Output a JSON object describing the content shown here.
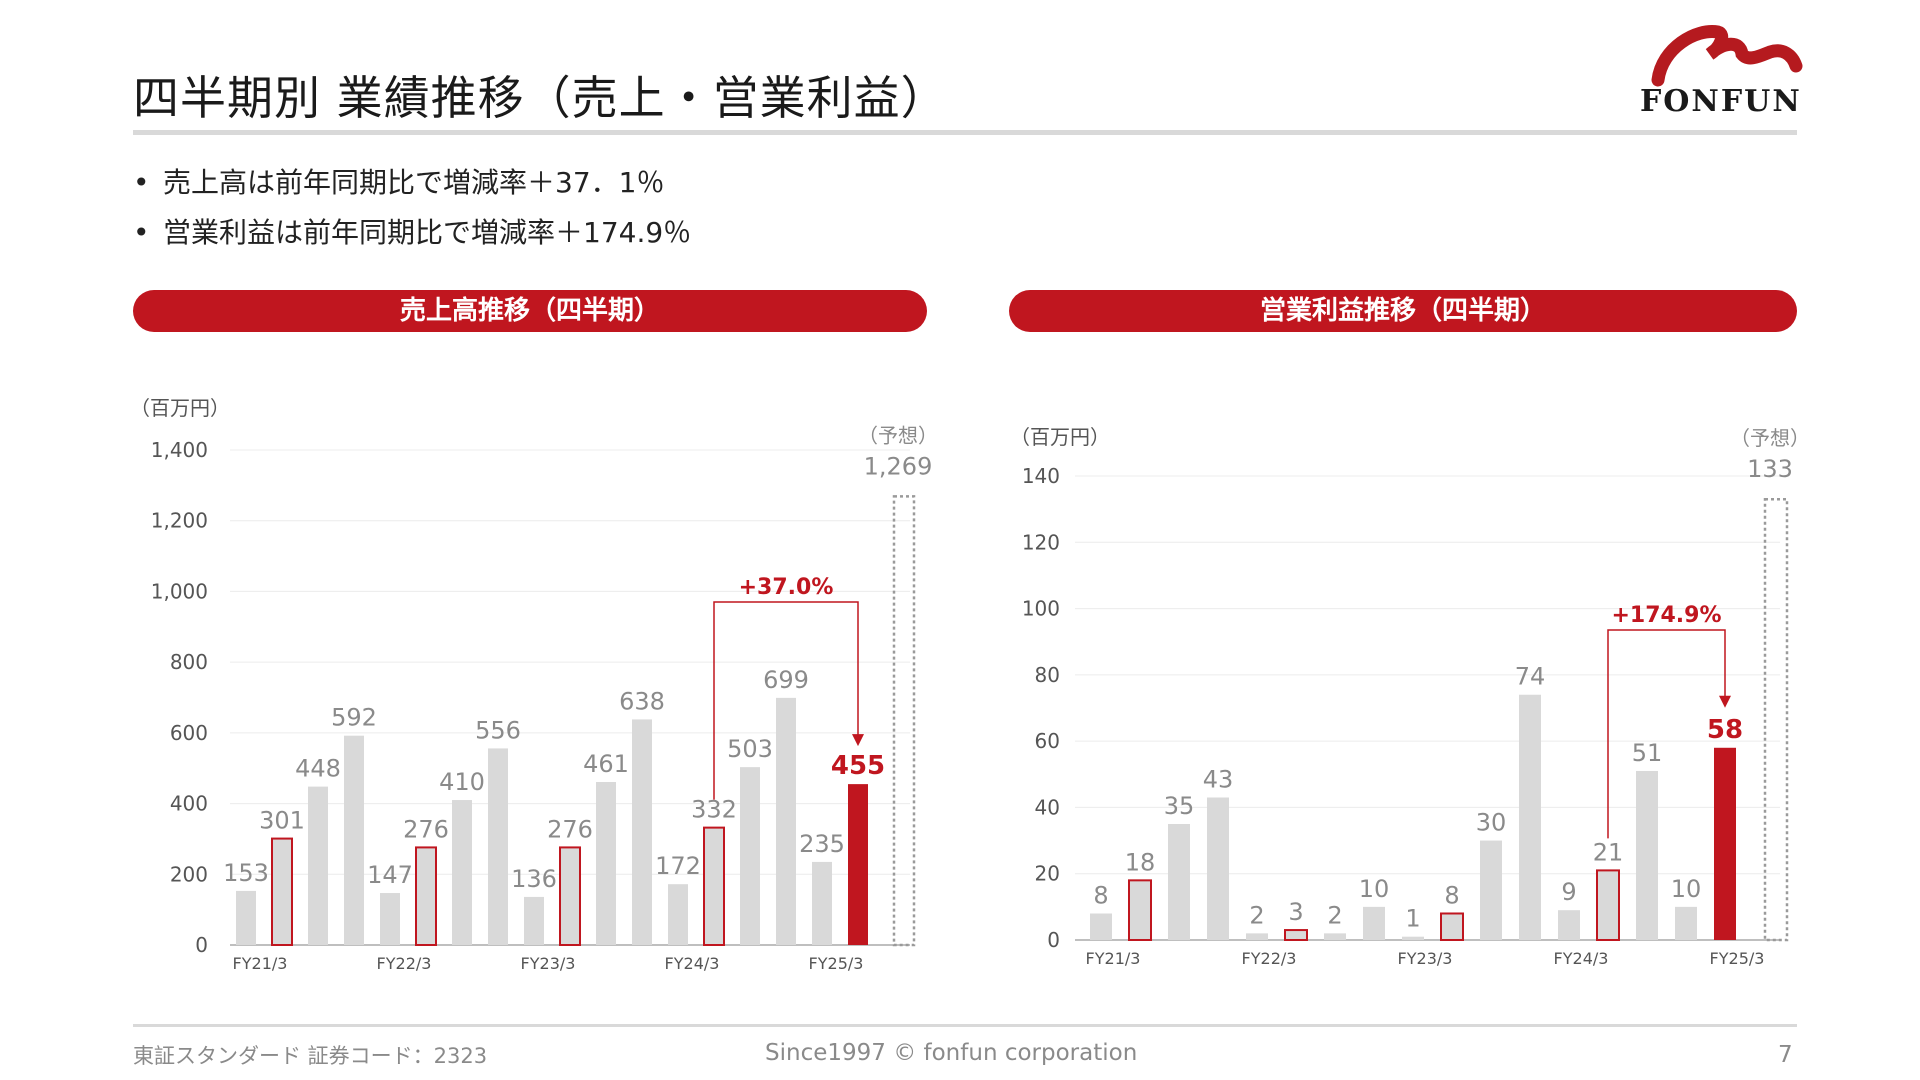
{
  "title": "四半期別 業績推移（売上・営業利益）",
  "logo": {
    "text": "FONFUN"
  },
  "bullets": [
    "売上高は前年同期比で増減率＋37．1％",
    "営業利益は前年同期比で増減率＋174.9％"
  ],
  "footer": {
    "left": "東証スタンダード 証券コード：2323",
    "center": "Since1997 © fonfun corporation",
    "page": "7"
  },
  "colors": {
    "accent": "#c0161f",
    "bar_gray": "#d9d9d9",
    "text_gray": "#8a8a8a"
  },
  "chart_data": [
    {
      "type": "bar",
      "banner": "売上高推移（四半期）",
      "unit": "（百万円）",
      "ylim": [
        0,
        1400
      ],
      "yticks": [
        "0",
        "200",
        "400",
        "600",
        "800",
        "1,000",
        "1,200",
        "1,400"
      ],
      "x_labels": [
        "FY21/3",
        "FY22/3",
        "FY23/3",
        "FY24/3",
        "FY25/3"
      ],
      "groups_of": 4,
      "values": [
        153,
        301,
        448,
        592,
        147,
        276,
        410,
        556,
        136,
        276,
        461,
        638,
        172,
        332,
        503,
        699,
        235,
        455
      ],
      "value_labels": [
        "153",
        "301",
        "448",
        "592",
        "147",
        "276",
        "410",
        "556",
        "136",
        "276",
        "461",
        "638",
        "172",
        "332",
        "503",
        "699",
        "235",
        "455"
      ],
      "highlight_q2": [
        1,
        5,
        9,
        13
      ],
      "current_index": 17,
      "forecast": {
        "label": "（予想）",
        "value": 1269,
        "value_label": "1,269"
      },
      "growth": {
        "label": "+37.0%",
        "from_index": 13,
        "to_index": 17
      },
      "grid": true
    },
    {
      "type": "bar",
      "banner": "営業利益推移（四半期）",
      "unit": "（百万円）",
      "ylim": [
        0,
        140
      ],
      "yticks": [
        "0",
        "20",
        "40",
        "60",
        "80",
        "100",
        "120",
        "140"
      ],
      "x_labels": [
        "FY21/3",
        "FY22/3",
        "FY23/3",
        "FY24/3",
        "FY25/3"
      ],
      "groups_of": 4,
      "values": [
        8,
        18,
        35,
        43,
        2,
        3,
        2,
        10,
        1,
        8,
        30,
        74,
        9,
        21,
        51,
        10,
        58
      ],
      "value_labels": [
        "8",
        "18",
        "35",
        "43",
        "2",
        "3",
        "2",
        "10",
        "1",
        "8",
        "30",
        "74",
        "9",
        "21",
        "51",
        "10",
        "58"
      ],
      "highlight_q2": [
        1,
        5,
        9,
        13
      ],
      "current_index": 16,
      "forecast": {
        "label": "（予想）",
        "value": 133,
        "value_label": "133"
      },
      "growth": {
        "label": "+174.9%",
        "from_index": 13,
        "to_index": 16
      },
      "grid": true
    }
  ]
}
